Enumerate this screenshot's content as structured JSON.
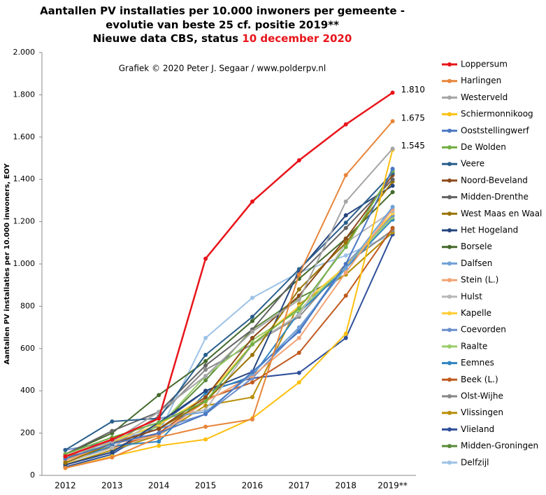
{
  "chart_data": {
    "type": "line",
    "title": "Aantallen  PV installaties  per 10.000 inwoners per gemeente -",
    "title_line2": "evolutie  van beste 25 cf. positie  2019**",
    "title_line3": "Nieuwe data CBS, status ",
    "title_date": "10 december 2020",
    "subtitle": "Grafiek  © 2020  Peter J. Segaar / www.polderpv.nl",
    "ylabel": "Aantallen PV installaties per 10.000 inwoners, EOY",
    "categories": [
      "2012",
      "2013",
      "2014",
      "2015",
      "2016",
      "2017",
      "2018",
      "2019**"
    ],
    "ylim": [
      0,
      2000
    ],
    "yticks": [
      0,
      200,
      400,
      600,
      800,
      {
        "value": 1000,
        "label": "1.000"
      },
      {
        "value": 1200,
        "label": "1.200"
      },
      {
        "value": 1400,
        "label": "1.400"
      },
      {
        "value": 1600,
        "label": "1.600"
      },
      {
        "value": 1800,
        "label": "1.800"
      },
      {
        "value": 2000,
        "label": "2.000"
      }
    ],
    "grid": false,
    "legend": "right",
    "series": [
      {
        "name": "Loppersum",
        "color": "#e8141a",
        "values": [
          90,
          170,
          270,
          1025,
          1295,
          1490,
          1660,
          1810
        ],
        "value_labels": [
          null,
          null,
          null,
          null,
          null,
          null,
          null,
          "1.810"
        ]
      },
      {
        "name": "Harlingen",
        "color": "#e8853a",
        "values": [
          35,
          85,
          180,
          230,
          265,
          950,
          1420,
          1675
        ],
        "value_labels": [
          null,
          null,
          null,
          null,
          null,
          null,
          null,
          "1.675"
        ]
      },
      {
        "name": "Westerveld",
        "color": "#a5a5a5",
        "values": [
          90,
          160,
          300,
          470,
          680,
          830,
          1295,
          1545
        ],
        "value_labels": [
          null,
          null,
          null,
          null,
          null,
          null,
          null,
          "1.545"
        ]
      },
      {
        "name": "Schiermonnikoog",
        "color": "#fcc010",
        "values": [
          35,
          90,
          140,
          170,
          270,
          440,
          670,
          1540
        ]
      },
      {
        "name": "Ooststellingwerf",
        "color": "#4a78c4",
        "values": [
          80,
          150,
          200,
          290,
          490,
          680,
          1000,
          1450
        ]
      },
      {
        "name": "De Wolden",
        "color": "#72b045",
        "values": [
          100,
          180,
          250,
          350,
          620,
          790,
          1080,
          1440
        ]
      },
      {
        "name": "Veere",
        "color": "#2a5f8c",
        "values": [
          120,
          255,
          270,
          570,
          750,
          975,
          1195,
          1430
        ]
      },
      {
        "name": "Noord-Beveland",
        "color": "#8c4a1a",
        "values": [
          80,
          150,
          220,
          370,
          650,
          850,
          1120,
          1420
        ]
      },
      {
        "name": "Midden-Drenthe",
        "color": "#636363",
        "values": [
          100,
          210,
          300,
          520,
          690,
          950,
          1170,
          1400
        ]
      },
      {
        "name": "West Maas en Waal",
        "color": "#997300",
        "values": [
          60,
          150,
          220,
          350,
          570,
          880,
          1100,
          1390
        ]
      },
      {
        "name": "Het Hogeland",
        "color": "#25457e",
        "values": [
          50,
          110,
          250,
          400,
          490,
          970,
          1230,
          1370
        ]
      },
      {
        "name": "Borsele",
        "color": "#446a2b",
        "values": [
          100,
          200,
          380,
          540,
          730,
          930,
          1120,
          1340
        ]
      },
      {
        "name": "Dalfsen",
        "color": "#6fa1d6",
        "values": [
          90,
          170,
          270,
          300,
          480,
          700,
          980,
          1270
        ]
      },
      {
        "name": "Stein (L.)",
        "color": "#f2a273",
        "values": [
          70,
          150,
          190,
          350,
          470,
          650,
          960,
          1260
        ]
      },
      {
        "name": "Hulst",
        "color": "#b8b8b8",
        "values": [
          60,
          130,
          270,
          310,
          620,
          760,
          1100,
          1250
        ]
      },
      {
        "name": "Kapelle",
        "color": "#ffcf3a",
        "values": [
          50,
          160,
          240,
          370,
          620,
          800,
          990,
          1240
        ]
      },
      {
        "name": "Coevorden",
        "color": "#6b8fcc",
        "values": [
          120,
          160,
          220,
          290,
          460,
          690,
          1000,
          1230
        ]
      },
      {
        "name": "Raalte",
        "color": "#99cc6a",
        "values": [
          70,
          170,
          230,
          470,
          640,
          780,
          990,
          1220
        ]
      },
      {
        "name": "Eemnes",
        "color": "#2e86c1",
        "values": [
          60,
          140,
          160,
          390,
          470,
          770,
          980,
          1210
        ]
      },
      {
        "name": "Beek (L.)",
        "color": "#c05a1e",
        "values": [
          90,
          130,
          200,
          360,
          440,
          580,
          850,
          1170
        ]
      },
      {
        "name": "Olst-Wijhe",
        "color": "#878787",
        "values": [
          80,
          150,
          280,
          500,
          620,
          750,
          1000,
          1160
        ]
      },
      {
        "name": "Vlissingen",
        "color": "#b8900a",
        "values": [
          50,
          120,
          190,
          330,
          370,
          810,
          950,
          1150
        ]
      },
      {
        "name": "Vlieland",
        "color": "#2f4f9a",
        "values": [
          40,
          100,
          240,
          400,
          460,
          485,
          650,
          1140
        ]
      },
      {
        "name": "Midden-Groningen",
        "color": "#5a8a3a",
        "values": [
          70,
          170,
          230,
          450,
          690,
          840,
          950,
          1150
        ]
      },
      {
        "name": "Delfzijl",
        "color": "#9dc3e6",
        "values": [
          50,
          110,
          200,
          650,
          840,
          960,
          1040,
          1140
        ]
      }
    ]
  }
}
